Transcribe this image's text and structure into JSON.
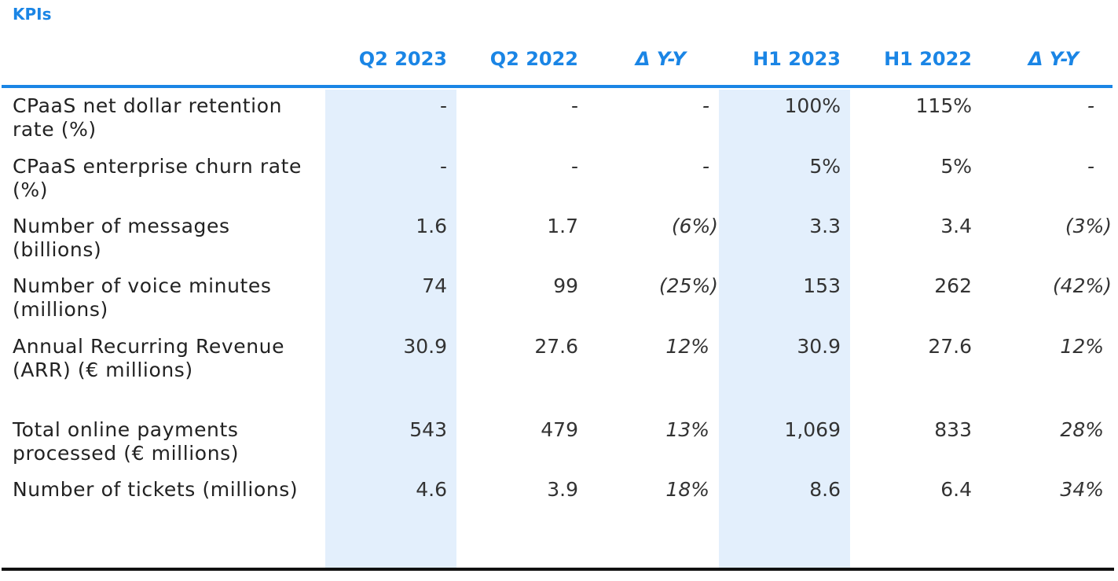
{
  "title": "KPIs",
  "columns": [
    "Q2 2023",
    "Q2 2022",
    "Δ Y-Y",
    "H1 2023",
    "H1 2022",
    "Δ Y-Y"
  ],
  "rows": [
    {
      "label": "CPaaS net dollar retention rate (%)",
      "values": [
        "-",
        "-",
        "-",
        "100%",
        "115%",
        "-"
      ]
    },
    {
      "label": "CPaaS enterprise churn rate (%)",
      "values": [
        "-",
        "-",
        "-",
        "5%",
        "5%",
        "-"
      ]
    },
    {
      "label": "Number of messages (billions)",
      "values": [
        "1.6",
        "1.7",
        "(6%)",
        "3.3",
        "3.4",
        "(3%)"
      ]
    },
    {
      "label": "Number of voice minutes (millions)",
      "values": [
        "74",
        "99",
        "(25%)",
        "153",
        "262",
        "(42%)"
      ]
    },
    {
      "label": "Annual Recurring Revenue (ARR) (€ millions)",
      "values": [
        "30.9",
        "27.6",
        "12%",
        "30.9",
        "27.6",
        "12%"
      ]
    },
    {
      "label": "Total online payments processed (€ millions)",
      "values": [
        "543",
        "479",
        "13%",
        "1,069",
        "833",
        "28%"
      ]
    },
    {
      "label": "Number of tickets (millions)",
      "values": [
        "4.6",
        "3.9",
        "18%",
        "8.6",
        "6.4",
        "34%"
      ]
    }
  ],
  "colors": {
    "accent": "#1a85e5",
    "highlight_band": "#e3effc",
    "rule_bottom": "#111111"
  }
}
